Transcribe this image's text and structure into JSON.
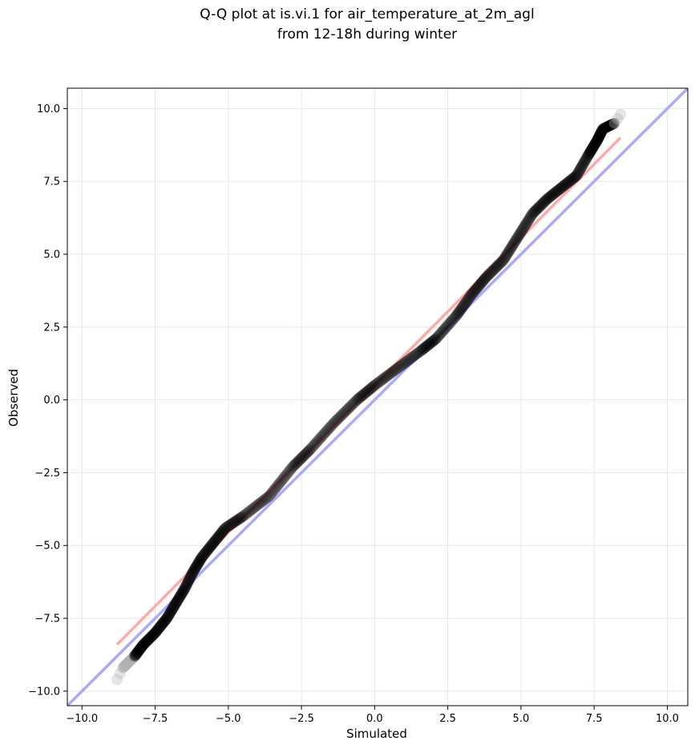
{
  "chart_data": {
    "type": "scatter",
    "title_lines": [
      "Q-Q plot at is.vi.1 for air_temperature_at_2m_agl",
      "from 12-18h during winter"
    ],
    "xlabel": "Simulated",
    "ylabel": "Observed",
    "xlim": [
      -10.5,
      10.7
    ],
    "ylim": [
      -10.5,
      10.7
    ],
    "xticks": [
      -10.0,
      -7.5,
      -5.0,
      -2.5,
      0.0,
      2.5,
      5.0,
      7.5,
      10.0
    ],
    "yticks": [
      -10.0,
      -7.5,
      -5.0,
      -2.5,
      0.0,
      2.5,
      5.0,
      7.5,
      10.0
    ],
    "xtick_labels": [
      "−10.0",
      "−7.5",
      "−5.0",
      "−2.5",
      "0.0",
      "2.5",
      "5.0",
      "7.5",
      "10.0"
    ],
    "ytick_labels": [
      "−10.0",
      "−7.5",
      "−5.0",
      "−2.5",
      "0.0",
      "2.5",
      "5.0",
      "7.5",
      "10.0"
    ],
    "grid": true,
    "reference_line": {
      "type": "identity",
      "color": "#aaaaff"
    },
    "fit_line": {
      "from": [
        -8.8,
        -8.4
      ],
      "to": [
        8.4,
        9.0
      ],
      "color": "#ffaaaa"
    },
    "quantile_knots": [
      [
        -8.8,
        -9.6
      ],
      [
        -8.6,
        -9.2
      ],
      [
        -8.2,
        -8.8
      ],
      [
        -7.9,
        -8.4
      ],
      [
        -7.5,
        -8.0
      ],
      [
        -7.1,
        -7.5
      ],
      [
        -6.8,
        -7.0
      ],
      [
        -6.5,
        -6.5
      ],
      [
        -6.2,
        -5.9
      ],
      [
        -5.9,
        -5.4
      ],
      [
        -5.5,
        -4.9
      ],
      [
        -5.1,
        -4.4
      ],
      [
        -4.5,
        -4.0
      ],
      [
        -3.6,
        -3.3
      ],
      [
        -2.8,
        -2.3
      ],
      [
        -2.2,
        -1.7
      ],
      [
        -1.4,
        -0.8
      ],
      [
        -0.6,
        0.0
      ],
      [
        0.0,
        0.5
      ],
      [
        0.8,
        1.1
      ],
      [
        1.6,
        1.7
      ],
      [
        2.1,
        2.1
      ],
      [
        2.8,
        2.9
      ],
      [
        3.3,
        3.6
      ],
      [
        3.8,
        4.2
      ],
      [
        4.4,
        4.8
      ],
      [
        4.9,
        5.6
      ],
      [
        5.4,
        6.4
      ],
      [
        5.9,
        6.9
      ],
      [
        6.4,
        7.3
      ],
      [
        6.9,
        7.7
      ],
      [
        7.3,
        8.4
      ],
      [
        7.6,
        8.9
      ],
      [
        7.8,
        9.3
      ],
      [
        8.2,
        9.5
      ],
      [
        8.4,
        9.8
      ]
    ],
    "points_per_segment": 22,
    "colors": {
      "points": "#000000",
      "points_faint": "#b0b0b0",
      "grid": "#e8e8e8",
      "axes": "#000000"
    }
  }
}
